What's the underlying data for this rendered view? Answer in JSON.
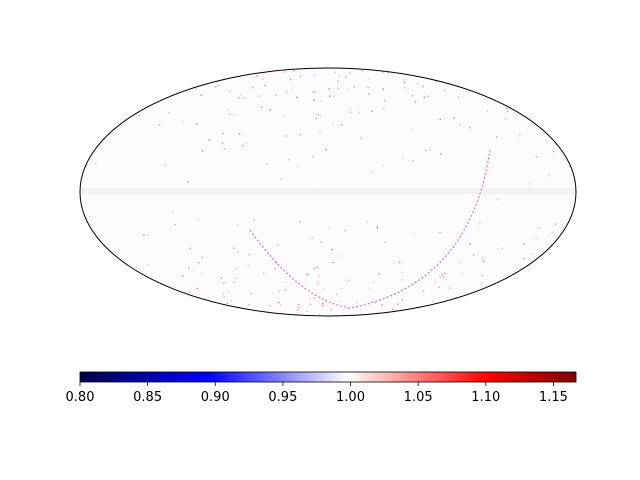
{
  "chart_data": {
    "type": "heatmap",
    "projection": "mollweide",
    "title": "",
    "colormap": "seismic",
    "colorbar": {
      "orientation": "horizontal",
      "placement": "bottom",
      "range": [
        0.8,
        1.1667
      ],
      "ticks": [
        0.8,
        0.85,
        0.9,
        0.95,
        1.0,
        1.05,
        1.1,
        1.15
      ],
      "tick_labels": [
        "0.80",
        "0.85",
        "0.90",
        "0.95",
        "1.00",
        "1.05",
        "1.10",
        "1.15"
      ]
    },
    "map_summary": {
      "dominant_value": 1.0,
      "features": [
        "near-uniform field at ~1.00",
        "noisy red/blue speckle near top and bottom of map",
        "thin arc-shaped ridge of blue/red values crossing the lower-right region"
      ]
    }
  }
}
